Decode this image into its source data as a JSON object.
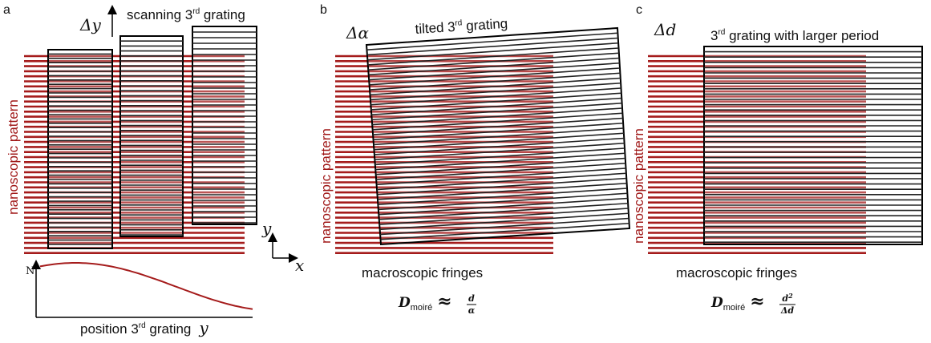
{
  "panels": [
    {
      "label": "a",
      "delta": "Δy",
      "grating_label": {
        "pre": "scanning 3",
        "sup": "rd",
        "post": " grating"
      },
      "pattern_label": "nanoscopic pattern",
      "axis_y": "y",
      "axis_x": "x",
      "plot_y_label": "N",
      "plot_x_label": {
        "pre": "position 3",
        "sup": "rd",
        "post": " grating"
      },
      "plot_x_var": "y"
    },
    {
      "label": "b",
      "delta": "Δα",
      "grating_label": {
        "pre": "tilted 3",
        "sup": "rd",
        "post": " grating"
      },
      "pattern_label": "nanoscopic pattern",
      "fringes_label": "macroscopic fringes",
      "formula": {
        "D": "D",
        "sub": "moiré",
        "approx": "≈",
        "num": "d",
        "den": "α"
      }
    },
    {
      "label": "c",
      "delta": "Δd",
      "grating_label": {
        "pre": "3",
        "sup": "rd",
        "post": " grating with larger period"
      },
      "pattern_label": "nanoscopic pattern",
      "fringes_label": "macroscopic fringes",
      "formula": {
        "D": "D",
        "sub": "moiré",
        "approx": "≈",
        "num": "d",
        "num_sup": "2",
        "den": "Δd"
      }
    }
  ]
}
